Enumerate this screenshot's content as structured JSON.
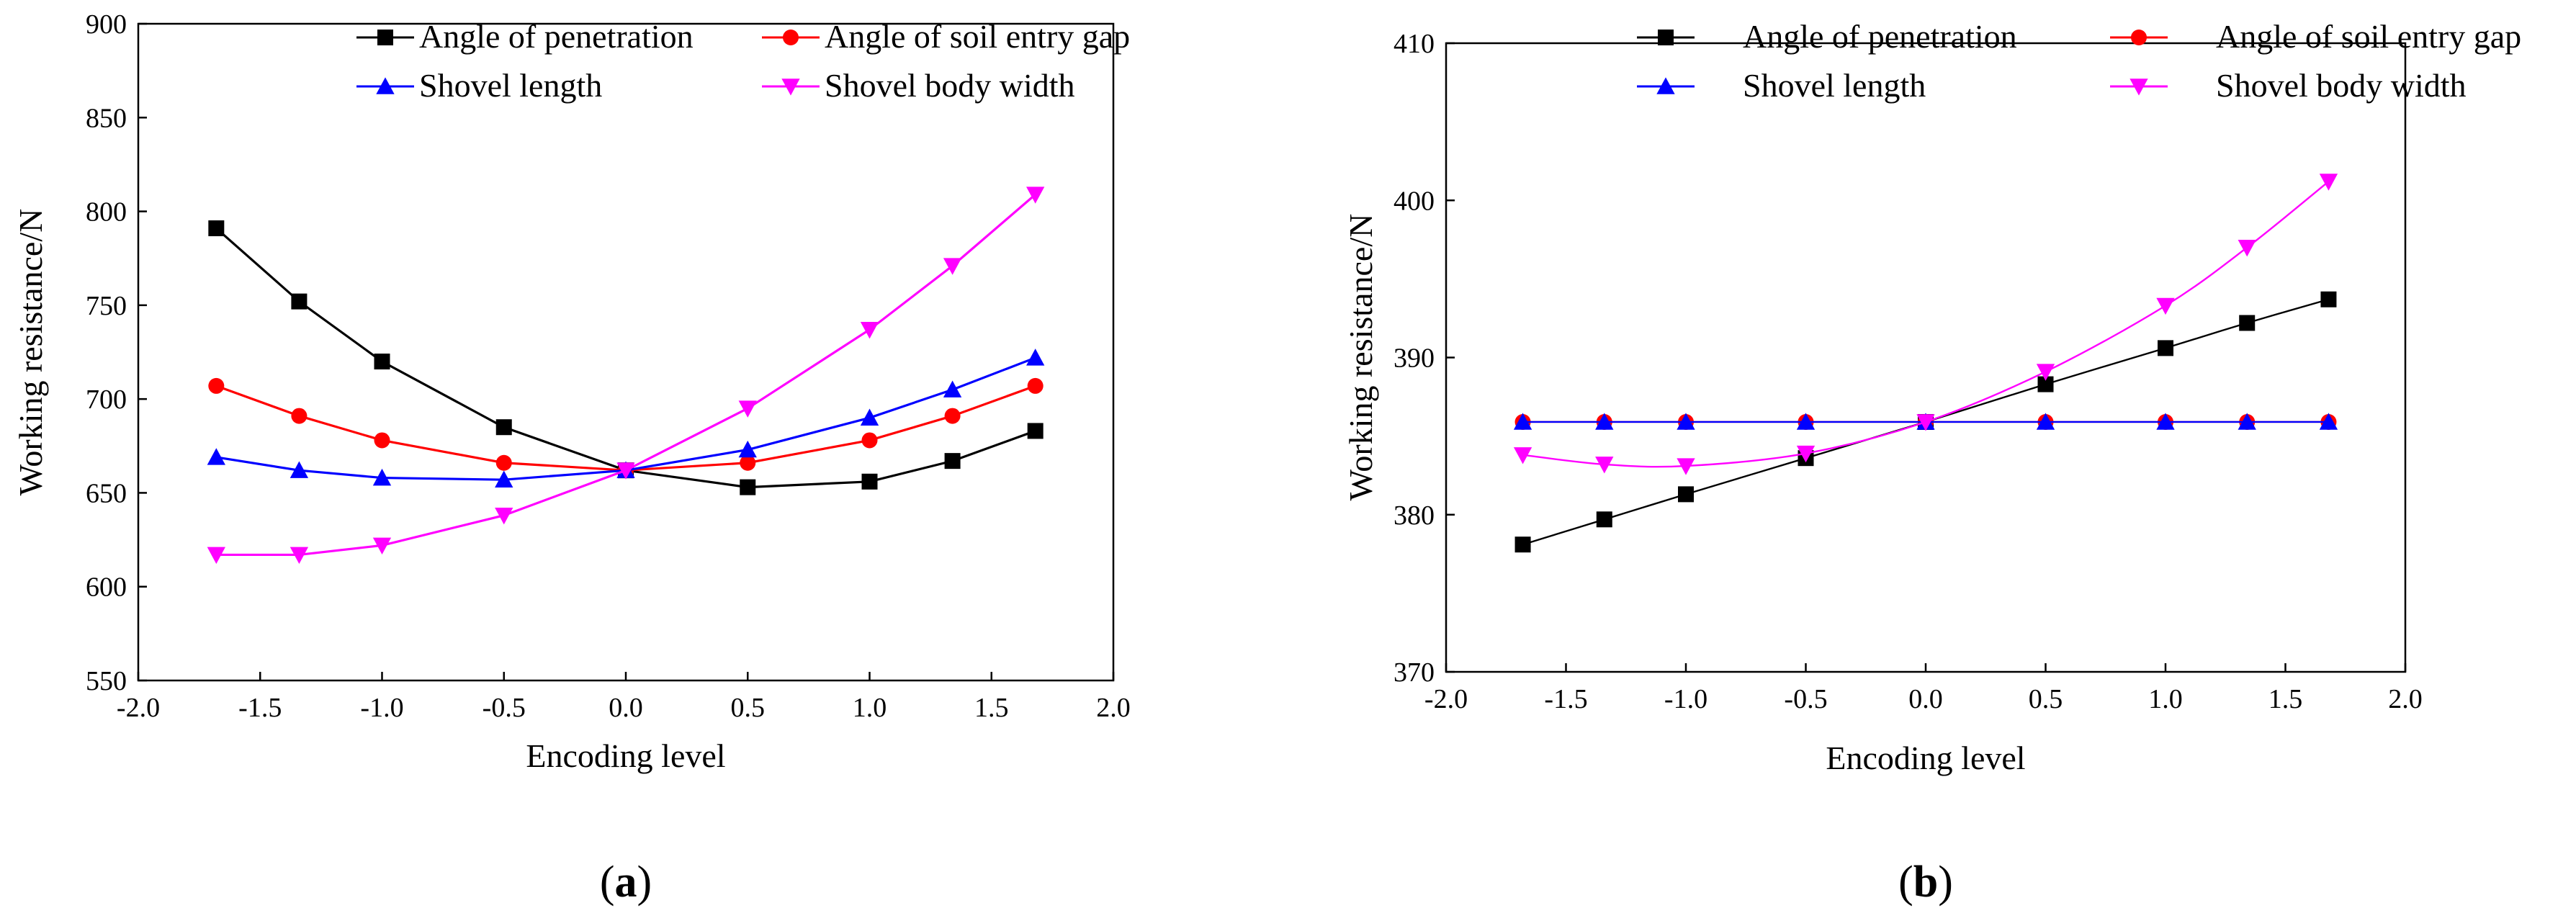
{
  "chart_data": [
    {
      "type": "line",
      "panel_label": "a",
      "xlabel": "Encoding level",
      "ylabel": "Working resistance/N",
      "xlim": [
        -2.0,
        2.0
      ],
      "ylim": [
        550,
        900
      ],
      "x_ticks": [
        -2.0,
        -1.5,
        -1.0,
        -0.5,
        0.0,
        0.5,
        1.0,
        1.5,
        2.0
      ],
      "x_tick_labels": [
        "-2.0",
        "-1.5",
        "-1.0",
        "-0.5",
        "0.0",
        "0.5",
        "1.0",
        "1.5",
        "2.0"
      ],
      "y_ticks": [
        550,
        600,
        650,
        700,
        750,
        800,
        850,
        900
      ],
      "y_tick_labels": [
        "550",
        "600",
        "650",
        "700",
        "750",
        "800",
        "850",
        "900"
      ],
      "grid": false,
      "legend_position": "top",
      "legend_order": [
        0,
        1,
        2,
        3
      ],
      "x": [
        -1.68,
        -1.34,
        -1.0,
        -0.5,
        0.0,
        0.5,
        1.0,
        1.34,
        1.68
      ],
      "series": [
        {
          "name": "Angle of penetration",
          "color": "#000000",
          "marker": "square",
          "values": [
            791,
            752,
            720,
            685,
            662,
            653,
            656,
            667,
            683
          ]
        },
        {
          "name": "Angle of soil entry gap",
          "color": "#ff0000",
          "marker": "circle",
          "values": [
            707,
            691,
            678,
            666,
            662,
            666,
            678,
            691,
            707
          ]
        },
        {
          "name": "Shovel length",
          "color": "#0000ff",
          "marker": "triangle-up",
          "values": [
            669,
            662,
            658,
            657,
            662,
            673,
            690,
            705,
            722
          ]
        },
        {
          "name": "Shovel body width",
          "color": "#ff00ff",
          "marker": "triangle-down",
          "values": [
            617,
            617,
            622,
            638,
            662,
            695,
            737,
            771,
            809
          ]
        }
      ]
    },
    {
      "type": "line",
      "panel_label": "b",
      "xlabel": "Encoding level",
      "ylabel": "Working resistance/N",
      "xlim": [
        -2.0,
        2.0
      ],
      "ylim": [
        370,
        410
      ],
      "x_ticks": [
        -2.0,
        -1.5,
        -1.0,
        -0.5,
        0.0,
        0.5,
        1.0,
        1.5,
        2.0
      ],
      "x_tick_labels": [
        "-2.0",
        "-1.5",
        "-1.0",
        "-0.5",
        "0.0",
        "0.5",
        "1.0",
        "1.5",
        "2.0"
      ],
      "y_ticks": [
        370,
        380,
        390,
        400,
        410
      ],
      "y_tick_labels": [
        "370",
        "380",
        "390",
        "400",
        "410"
      ],
      "grid": false,
      "legend_position": "top",
      "legend_order": [
        0,
        1,
        2,
        3
      ],
      "x": [
        -1.68,
        -1.34,
        -1.0,
        -0.5,
        0.0,
        0.5,
        1.0,
        1.34,
        1.68
      ],
      "series": [
        {
          "name": "Angle of penetration",
          "color": "#000000",
          "marker": "square",
          "values": [
            378.1,
            379.7,
            381.3,
            383.6,
            385.9,
            388.3,
            390.6,
            392.2,
            393.7
          ]
        },
        {
          "name": "Angle of soil entry gap",
          "color": "#ff0000",
          "marker": "circle",
          "values": [
            385.9,
            385.9,
            385.9,
            385.9,
            385.9,
            385.9,
            385.9,
            385.9,
            385.9
          ]
        },
        {
          "name": "Shovel length",
          "color": "#0000ff",
          "marker": "triangle-up",
          "values": [
            385.9,
            385.9,
            385.9,
            385.9,
            385.9,
            385.9,
            385.9,
            385.9,
            385.9
          ]
        },
        {
          "name": "Shovel body width",
          "color": "#ff00ff",
          "marker": "triangle-down",
          "values": [
            383.8,
            383.2,
            383.1,
            383.9,
            385.9,
            389.1,
            393.3,
            397.0,
            401.2
          ]
        }
      ]
    }
  ]
}
